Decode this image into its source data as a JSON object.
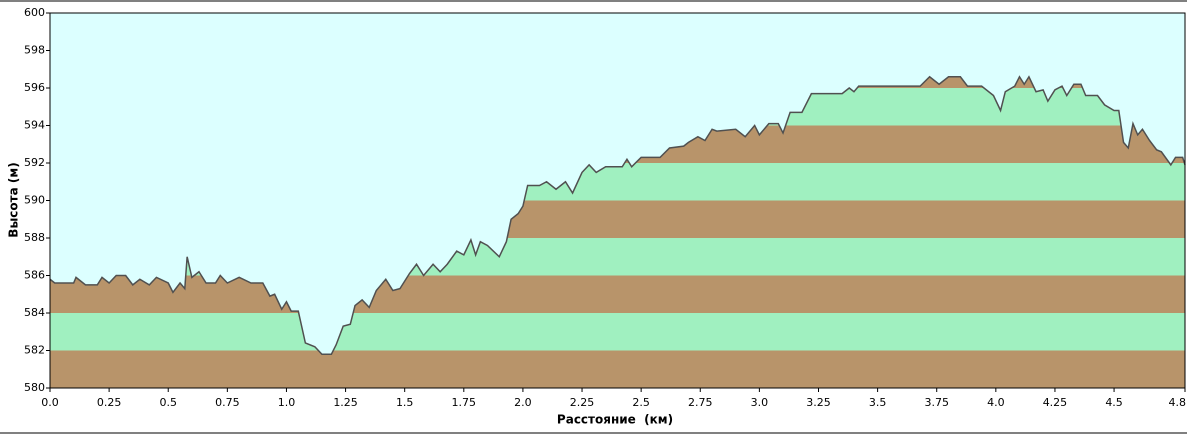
{
  "chart_data": {
    "type": "elevation",
    "xlabel": "Расстояние  (км)",
    "ylabel": "Высота (м)",
    "background": "#dcffff",
    "band_colors": [
      "#b8946a",
      "#a0f0c0"
    ],
    "series": [
      {
        "color": "#505050",
        "x": [
          0.0,
          0.02,
          0.1,
          0.11,
          0.15,
          0.2,
          0.22,
          0.25,
          0.28,
          0.32,
          0.35,
          0.38,
          0.42,
          0.45,
          0.5,
          0.52,
          0.55,
          0.57,
          0.58,
          0.6,
          0.63,
          0.66,
          0.7,
          0.72,
          0.75,
          0.8,
          0.85,
          0.9,
          0.93,
          0.95,
          0.98,
          1.0,
          1.02,
          1.05,
          1.08,
          1.12,
          1.15,
          1.19,
          1.21,
          1.24,
          1.27,
          1.29,
          1.32,
          1.35,
          1.38,
          1.42,
          1.45,
          1.48,
          1.52,
          1.55,
          1.58,
          1.62,
          1.65,
          1.68,
          1.72,
          1.75,
          1.78,
          1.8,
          1.82,
          1.85,
          1.9,
          1.93,
          1.95,
          1.98,
          2.0,
          2.02,
          2.07,
          2.1,
          2.14,
          2.18,
          2.21,
          2.25,
          2.28,
          2.31,
          2.35,
          2.42,
          2.44,
          2.46,
          2.5,
          2.58,
          2.62,
          2.68,
          2.7,
          2.74,
          2.77,
          2.8,
          2.82,
          2.9,
          2.94,
          2.98,
          3.0,
          3.04,
          3.08,
          3.1,
          3.13,
          3.18,
          3.22,
          3.35,
          3.38,
          3.4,
          3.42,
          3.62,
          3.68,
          3.72,
          3.76,
          3.8,
          3.85,
          3.88,
          3.94,
          3.99,
          4.02,
          4.04,
          4.08,
          4.1,
          4.12,
          4.14,
          4.17,
          4.2,
          4.22,
          4.25,
          4.28,
          4.3,
          4.33,
          4.36,
          4.38,
          4.43,
          4.46,
          4.5,
          4.52,
          4.54,
          4.56,
          4.58,
          4.6,
          4.62,
          4.65,
          4.68,
          4.7,
          4.74,
          4.76,
          4.79,
          4.8
        ],
        "values": [
          585.8,
          585.6,
          585.6,
          585.9,
          585.5,
          585.5,
          585.9,
          585.6,
          586.0,
          586.0,
          585.5,
          585.8,
          585.5,
          585.9,
          585.6,
          585.1,
          585.6,
          585.3,
          587.0,
          585.9,
          586.2,
          585.6,
          585.6,
          586.0,
          585.6,
          585.9,
          585.6,
          585.6,
          584.9,
          585.0,
          584.2,
          584.6,
          584.1,
          584.1,
          582.4,
          582.2,
          581.8,
          581.8,
          582.3,
          583.3,
          583.4,
          584.4,
          584.7,
          584.3,
          585.2,
          585.8,
          585.2,
          585.3,
          586.1,
          586.6,
          586.0,
          586.6,
          586.2,
          586.6,
          587.3,
          587.1,
          587.9,
          587.1,
          587.8,
          587.6,
          587.0,
          587.8,
          589.0,
          589.3,
          589.7,
          590.8,
          590.8,
          591.0,
          590.6,
          591.0,
          590.4,
          591.5,
          591.9,
          591.5,
          591.8,
          591.8,
          592.2,
          591.8,
          592.3,
          592.3,
          592.8,
          592.9,
          593.1,
          593.4,
          593.2,
          593.8,
          593.7,
          593.8,
          593.4,
          594.0,
          593.5,
          594.1,
          594.1,
          593.6,
          594.7,
          594.7,
          595.7,
          595.7,
          596.0,
          595.8,
          596.1,
          596.1,
          596.1,
          596.6,
          596.2,
          596.6,
          596.6,
          596.1,
          596.1,
          595.6,
          594.8,
          595.8,
          596.1,
          596.6,
          596.2,
          596.6,
          595.8,
          595.9,
          595.3,
          595.9,
          596.1,
          595.6,
          596.2,
          596.2,
          595.6,
          595.6,
          595.1,
          594.8,
          594.8,
          593.1,
          592.8,
          594.1,
          593.5,
          593.8,
          593.2,
          592.7,
          592.6,
          591.9,
          592.3,
          592.3,
          591.9
        ]
      }
    ],
    "xlim": [
      0,
      4.8
    ],
    "ylim": [
      580,
      600
    ],
    "xticks": [
      {
        "value": 0,
        "label": "0.0"
      },
      0.25,
      0.5,
      0.75,
      {
        "value": 1,
        "label": "1.0"
      },
      1.25,
      1.5,
      1.75,
      {
        "value": 2,
        "label": "2.0"
      },
      2.25,
      2.5,
      2.75,
      {
        "value": 3,
        "label": "3.0"
      },
      3.25,
      3.5,
      3.75,
      {
        "value": 4,
        "label": "4.0"
      },
      4.25,
      4.5,
      4.8
    ],
    "yticks": [
      580,
      582,
      584,
      586,
      588,
      590,
      592,
      594,
      596,
      598,
      600
    ]
  }
}
